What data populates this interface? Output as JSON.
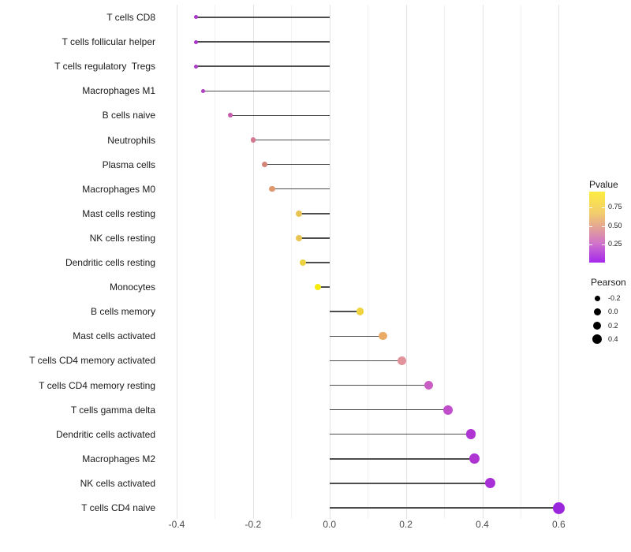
{
  "chart_data": {
    "type": "lollipop",
    "title": "",
    "xlabel": "",
    "ylabel": "",
    "xlim": [
      -0.435,
      0.655
    ],
    "x_ticks": [
      "-0.4",
      "-0.2",
      "0.0",
      "0.2",
      "0.4",
      "0.6"
    ],
    "x_tick_values": [
      -0.4,
      -0.2,
      0.0,
      0.2,
      0.4,
      0.6
    ],
    "minor_grid_step": 0.1,
    "grid_major_color": "#e3e3e3",
    "grid_minor_color": "#f1f1f1",
    "stem_color": "#4d4d4d",
    "rows": [
      {
        "label": "T cells CD8",
        "pearson": -0.35,
        "color": "#a937c9"
      },
      {
        "label": "T cells follicular helper",
        "pearson": -0.35,
        "color": "#a937c9"
      },
      {
        "label": "T cells regulatory  Tregs",
        "pearson": -0.35,
        "color": "#ab3ac7"
      },
      {
        "label": "Macrophages M1",
        "pearson": -0.33,
        "color": "#b140c3"
      },
      {
        "label": "B cells naive",
        "pearson": -0.26,
        "color": "#c45cab"
      },
      {
        "label": "Neutrophils",
        "pearson": -0.2,
        "color": "#d4798f"
      },
      {
        "label": "Plasma cells",
        "pearson": -0.17,
        "color": "#d28577"
      },
      {
        "label": "Macrophages M0",
        "pearson": -0.15,
        "color": "#e0996e"
      },
      {
        "label": "Mast cells resting",
        "pearson": -0.08,
        "color": "#e9c454"
      },
      {
        "label": "NK cells resting",
        "pearson": -0.08,
        "color": "#e9c454"
      },
      {
        "label": "Dendritic cells resting",
        "pearson": -0.07,
        "color": "#edd23f"
      },
      {
        "label": "Monocytes",
        "pearson": -0.03,
        "color": "#f8ec0c"
      },
      {
        "label": "B cells memory",
        "pearson": 0.08,
        "color": "#eed33e"
      },
      {
        "label": "Mast cells activated",
        "pearson": 0.14,
        "color": "#ebab66"
      },
      {
        "label": "T cells CD4 memory activated",
        "pearson": 0.19,
        "color": "#e2929b"
      },
      {
        "label": "T cells CD4 memory resting",
        "pearson": 0.26,
        "color": "#c95fc3"
      },
      {
        "label": "T cells gamma delta",
        "pearson": 0.31,
        "color": "#c24ecb"
      },
      {
        "label": "Dendritic cells activated",
        "pearson": 0.37,
        "color": "#ae35d2"
      },
      {
        "label": "Macrophages M2",
        "pearson": 0.38,
        "color": "#ae35d2"
      },
      {
        "label": "NK cells activated",
        "pearson": 0.42,
        "color": "#a92fd6"
      },
      {
        "label": "T cells CD4 naive",
        "pearson": 0.6,
        "color": "#9b27dc"
      }
    ],
    "legend_pvalue": {
      "title": "Pvalue",
      "tick_labels": [
        "0.75",
        "0.50",
        "0.25"
      ],
      "gradient_colors": [
        "#fdec3f",
        "#f3cd6d",
        "#e2a198",
        "#d073cb",
        "#a930e8"
      ]
    },
    "legend_pearson": {
      "title": "Pearson",
      "dot_color": "#000000",
      "items": [
        {
          "label": "-0.2",
          "size": 7
        },
        {
          "label": "0.0",
          "size": 9
        },
        {
          "label": "0.2",
          "size": 10.5
        },
        {
          "label": "0.4",
          "size": 12
        }
      ]
    }
  }
}
